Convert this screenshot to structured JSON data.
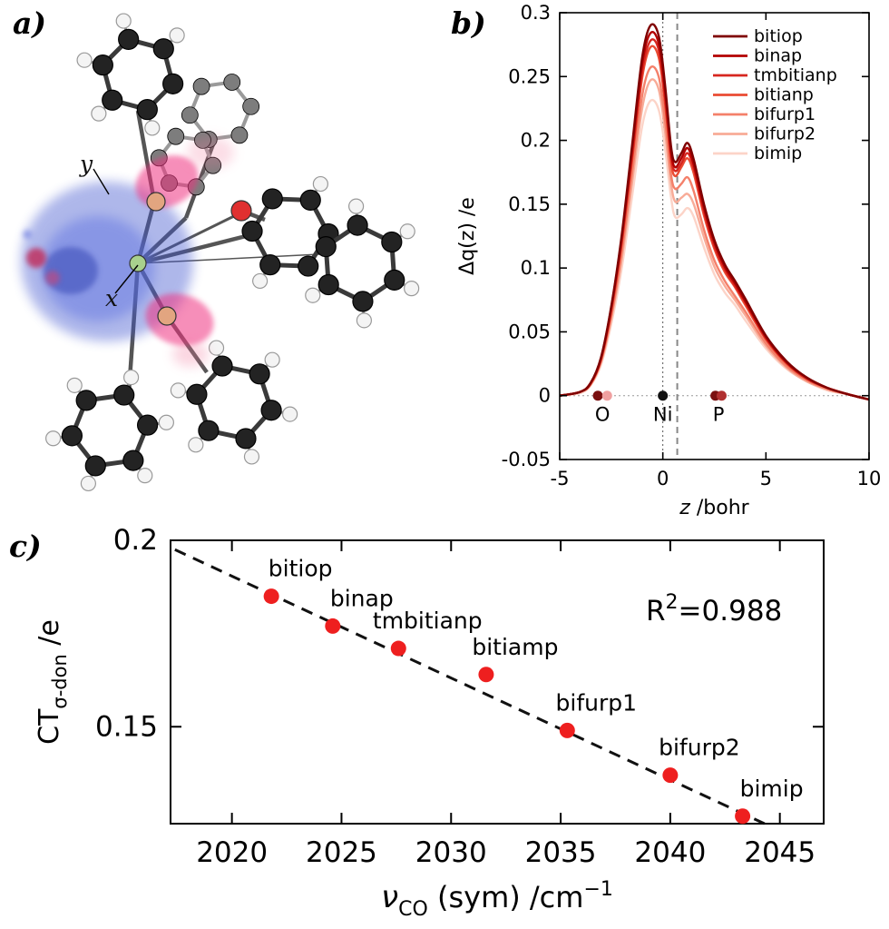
{
  "panels": {
    "a": {
      "label": "a)",
      "axis_y": "y",
      "axis_x": "x"
    },
    "b": {
      "label": "b)"
    },
    "c": {
      "label": "c)"
    }
  },
  "chart_data": [
    {
      "id": "panel-b",
      "type": "line",
      "ylabel": "Δq(z) /e",
      "xlabel_italic": "z",
      "xlabel_rest": " /bohr",
      "xlim": [
        -5,
        10
      ],
      "ylim": [
        -0.05,
        0.3
      ],
      "xticks": [
        -5,
        0,
        5,
        10
      ],
      "yticks": [
        -0.05,
        0,
        0.05,
        0.1,
        0.15,
        0.2,
        0.25,
        0.3
      ],
      "vline_dotted_z": 0,
      "vline_dashed_z": 0.7,
      "hline_dotted_y": 0,
      "legend_position": "top-right",
      "atom_markers": [
        {
          "label": "O",
          "dots": [
            {
              "z": -3.15,
              "color": "#7a1010"
            },
            {
              "z": -2.7,
              "color": "#f0a0a0"
            }
          ]
        },
        {
          "label": "Ni",
          "dots": [
            {
              "z": 0,
              "color": "#111111"
            }
          ]
        },
        {
          "label": "P",
          "dots": [
            {
              "z": 2.55,
              "color": "#7a1010"
            },
            {
              "z": 2.85,
              "color": "#b03030"
            }
          ]
        }
      ],
      "x": [
        -5,
        -4,
        -3.5,
        -3,
        -2.5,
        -2,
        -1.5,
        -1,
        -0.6,
        -0.2,
        0.1,
        0.4,
        0.6,
        0.9,
        1.2,
        1.5,
        2,
        2.5,
        3,
        3.5,
        4,
        5,
        6,
        7,
        8,
        9,
        10
      ],
      "series": [
        {
          "name": "bitiop",
          "color": "#7f0000",
          "values": [
            0,
            0.003,
            0.01,
            0.03,
            0.07,
            0.125,
            0.195,
            0.265,
            0.29,
            0.282,
            0.245,
            0.195,
            0.183,
            0.19,
            0.198,
            0.185,
            0.15,
            0.122,
            0.103,
            0.09,
            0.076,
            0.047,
            0.027,
            0.014,
            0.006,
            0.001,
            -0.003
          ]
        },
        {
          "name": "binap",
          "color": "#b30000",
          "values": [
            0,
            0.003,
            0.01,
            0.029,
            0.069,
            0.123,
            0.191,
            0.26,
            0.284,
            0.276,
            0.24,
            0.191,
            0.179,
            0.186,
            0.194,
            0.181,
            0.147,
            0.12,
            0.101,
            0.088,
            0.074,
            0.046,
            0.026,
            0.014,
            0.006,
            0.001,
            -0.003
          ]
        },
        {
          "name": "tmbitianp",
          "color": "#d7261f",
          "values": [
            0,
            0.003,
            0.01,
            0.029,
            0.067,
            0.12,
            0.187,
            0.254,
            0.278,
            0.271,
            0.235,
            0.187,
            0.176,
            0.182,
            0.19,
            0.178,
            0.144,
            0.117,
            0.099,
            0.086,
            0.073,
            0.045,
            0.026,
            0.013,
            0.006,
            0.001,
            -0.003
          ]
        },
        {
          "name": "bitianp",
          "color": "#ea4b33",
          "values": [
            0,
            0.003,
            0.009,
            0.028,
            0.066,
            0.118,
            0.183,
            0.249,
            0.273,
            0.265,
            0.23,
            0.183,
            0.172,
            0.179,
            0.186,
            0.174,
            0.141,
            0.115,
            0.097,
            0.085,
            0.071,
            0.044,
            0.025,
            0.013,
            0.006,
            0.001,
            -0.003
          ]
        },
        {
          "name": "bifurp1",
          "color": "#f4806a",
          "values": [
            0,
            0.003,
            0.009,
            0.027,
            0.062,
            0.111,
            0.173,
            0.235,
            0.257,
            0.25,
            0.217,
            0.173,
            0.162,
            0.166,
            0.171,
            0.16,
            0.13,
            0.106,
            0.09,
            0.078,
            0.066,
            0.041,
            0.023,
            0.012,
            0.005,
            0.001,
            -0.003
          ]
        },
        {
          "name": "bifurp2",
          "color": "#f8ab97",
          "values": [
            0,
            0.003,
            0.009,
            0.026,
            0.06,
            0.106,
            0.166,
            0.225,
            0.247,
            0.24,
            0.208,
            0.166,
            0.152,
            0.155,
            0.158,
            0.15,
            0.124,
            0.101,
            0.086,
            0.075,
            0.063,
            0.039,
            0.022,
            0.011,
            0.005,
            0.001,
            -0.003
          ]
        },
        {
          "name": "bimip",
          "color": "#fcd4c8",
          "values": [
            0,
            0.002,
            0.008,
            0.024,
            0.056,
            0.099,
            0.155,
            0.211,
            0.231,
            0.224,
            0.195,
            0.155,
            0.14,
            0.142,
            0.147,
            0.14,
            0.116,
            0.095,
            0.081,
            0.071,
            0.059,
            0.037,
            0.021,
            0.011,
            0.004,
            0.001,
            -0.003
          ]
        }
      ]
    },
    {
      "id": "panel-c",
      "type": "scatter",
      "ylabel": {
        "pre": "CT",
        "sub": "σ-don",
        "rest": " /e"
      },
      "xlabel": {
        "sym": "ν",
        "sub": "CO",
        "rest": " (sym) /cm",
        "sup": "−1"
      },
      "annotation": {
        "pre": "R",
        "sup": "2",
        "rest": "=0.988"
      },
      "xlim": [
        2017.2,
        2047.0
      ],
      "ylim": [
        0.124,
        0.2
      ],
      "xticks": [
        2020,
        2025,
        2030,
        2035,
        2040,
        2045
      ],
      "yticks": [
        0.15,
        0.2
      ],
      "point_color": "#ee1f1f",
      "trendline": {
        "style": "dashed",
        "x1": 2017.4,
        "y1": 0.1975,
        "x2": 2044.3,
        "y2": 0.124
      },
      "points": [
        {
          "label": "bitiop",
          "x": 2021.8,
          "y": 0.185
        },
        {
          "label": "binap",
          "x": 2024.6,
          "y": 0.177
        },
        {
          "label": "tmbitianp",
          "x": 2027.6,
          "y": 0.171
        },
        {
          "label": "bitiamp",
          "x": 2031.6,
          "y": 0.164
        },
        {
          "label": "bifurp1",
          "x": 2035.3,
          "y": 0.149
        },
        {
          "label": "bifurp2",
          "x": 2040.0,
          "y": 0.137
        },
        {
          "label": "bimip",
          "x": 2043.3,
          "y": 0.126
        }
      ]
    }
  ]
}
